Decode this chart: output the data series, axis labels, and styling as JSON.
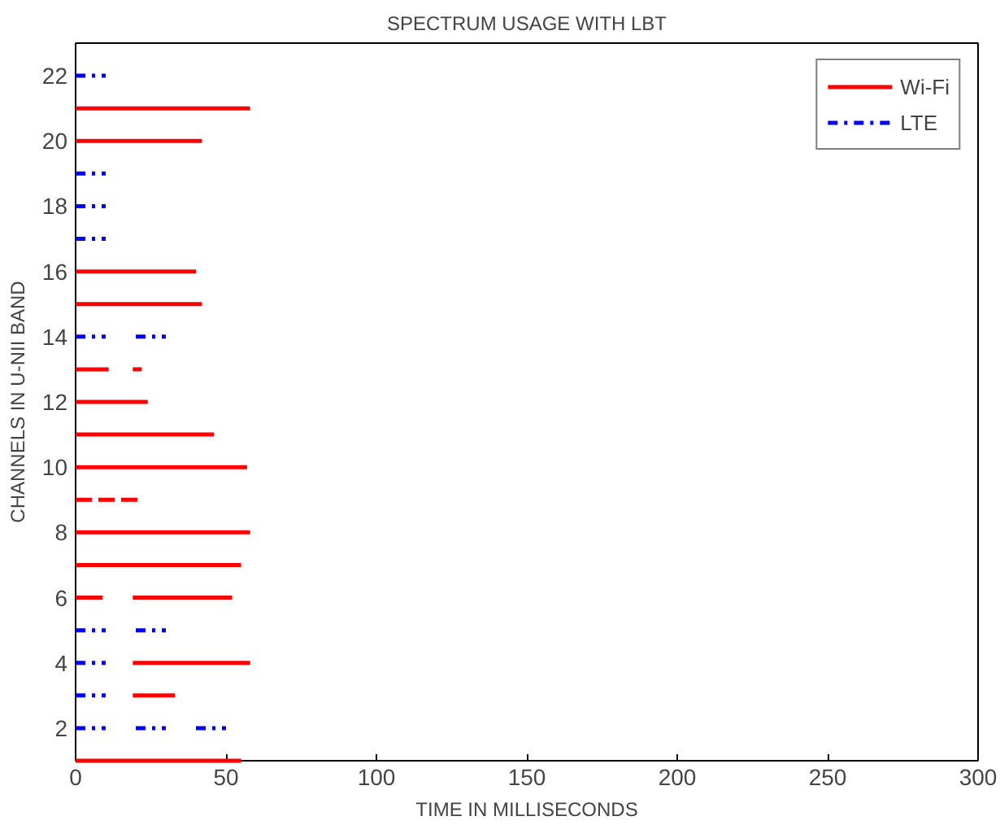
{
  "chart_data": {
    "type": "line",
    "title": "SPECTRUM USAGE WITH LBT",
    "xlabel": "TIME IN MILLISECONDS",
    "ylabel": "CHANNELS IN U-NII BAND",
    "xlim": [
      0,
      300
    ],
    "ylim": [
      1,
      23
    ],
    "xticks": [
      0,
      50,
      100,
      150,
      200,
      250,
      300
    ],
    "yticks": [
      2,
      4,
      6,
      8,
      10,
      12,
      14,
      16,
      18,
      20,
      22
    ],
    "grid": false,
    "legend": "top right",
    "marker": "none",
    "series": [
      {
        "name": "Wi-Fi",
        "color": "#ff0000",
        "line_style": "solid",
        "x": [
          0,
          58
        ],
        "values": [
          21,
          21
        ]
      },
      {
        "color": "#ff0000",
        "line_style": "solid",
        "x": [
          0,
          42
        ],
        "values": [
          20,
          20
        ]
      },
      {
        "color": "#ff0000",
        "line_style": "solid",
        "x": [
          0,
          40
        ],
        "values": [
          16,
          16
        ]
      },
      {
        "color": "#ff0000",
        "line_style": "solid",
        "x": [
          0,
          42
        ],
        "values": [
          15,
          15
        ]
      },
      {
        "color": "#ff0000",
        "line_style": "solid",
        "x": [
          0,
          11
        ],
        "values": [
          13,
          13
        ]
      },
      {
        "color": "#ff0000",
        "line_style": "solid",
        "x": [
          19,
          22
        ],
        "values": [
          13,
          13
        ]
      },
      {
        "color": "#ff0000",
        "line_style": "solid",
        "x": [
          0,
          24
        ],
        "values": [
          12,
          12
        ]
      },
      {
        "color": "#ff0000",
        "line_style": "solid",
        "x": [
          0,
          46
        ],
        "values": [
          11,
          11
        ]
      },
      {
        "color": "#ff0000",
        "line_style": "solid",
        "x": [
          0,
          57
        ],
        "values": [
          10,
          10
        ]
      },
      {
        "color": "#ff0000",
        "line_style": "dashed",
        "x": [
          0,
          22
        ],
        "values": [
          9,
          9
        ]
      },
      {
        "color": "#ff0000",
        "line_style": "solid",
        "x": [
          0,
          58
        ],
        "values": [
          8,
          8
        ]
      },
      {
        "color": "#ff0000",
        "line_style": "solid",
        "x": [
          0,
          55
        ],
        "values": [
          7,
          7
        ]
      },
      {
        "color": "#ff0000",
        "line_style": "solid",
        "x": [
          0,
          9
        ],
        "values": [
          6,
          6
        ]
      },
      {
        "color": "#ff0000",
        "line_style": "solid",
        "x": [
          19,
          52
        ],
        "values": [
          6,
          6
        ]
      },
      {
        "color": "#ff0000",
        "line_style": "solid",
        "x": [
          19,
          58
        ],
        "values": [
          4,
          4
        ]
      },
      {
        "color": "#ff0000",
        "line_style": "solid",
        "x": [
          19,
          33
        ],
        "values": [
          3,
          3
        ]
      },
      {
        "color": "#ff0000",
        "line_style": "solid",
        "x": [
          0,
          55
        ],
        "values": [
          1,
          1
        ]
      },
      {
        "name": "LTE",
        "color": "#0000ff",
        "line_style": "dashdot",
        "x": [
          0,
          10
        ],
        "values": [
          22,
          22
        ]
      },
      {
        "color": "#0000ff",
        "line_style": "dashdot",
        "x": [
          0,
          10
        ],
        "values": [
          19,
          19
        ]
      },
      {
        "color": "#0000ff",
        "line_style": "dashdot",
        "x": [
          0,
          10
        ],
        "values": [
          18,
          18
        ]
      },
      {
        "color": "#0000ff",
        "line_style": "dashdot",
        "x": [
          0,
          10
        ],
        "values": [
          17,
          17
        ]
      },
      {
        "color": "#0000ff",
        "line_style": "dashdot",
        "x": [
          0,
          10
        ],
        "values": [
          14,
          14
        ]
      },
      {
        "color": "#0000ff",
        "line_style": "dashdot",
        "x": [
          20,
          30
        ],
        "values": [
          14,
          14
        ]
      },
      {
        "color": "#0000ff",
        "line_style": "dashdot",
        "x": [
          0,
          10
        ],
        "values": [
          5,
          5
        ]
      },
      {
        "color": "#0000ff",
        "line_style": "dashdot",
        "x": [
          20,
          30
        ],
        "values": [
          5,
          5
        ]
      },
      {
        "color": "#0000ff",
        "line_style": "dashdot",
        "x": [
          0,
          10
        ],
        "values": [
          4,
          4
        ]
      },
      {
        "color": "#0000ff",
        "line_style": "dashdot",
        "x": [
          0,
          10
        ],
        "values": [
          3,
          3
        ]
      },
      {
        "color": "#0000ff",
        "line_style": "dashdot",
        "x": [
          0,
          10
        ],
        "values": [
          2,
          2
        ]
      },
      {
        "color": "#0000ff",
        "line_style": "dashdot",
        "x": [
          20,
          30
        ],
        "values": [
          2,
          2
        ]
      },
      {
        "color": "#0000ff",
        "line_style": "dashdot",
        "x": [
          40,
          50
        ],
        "values": [
          2,
          2
        ]
      }
    ]
  }
}
